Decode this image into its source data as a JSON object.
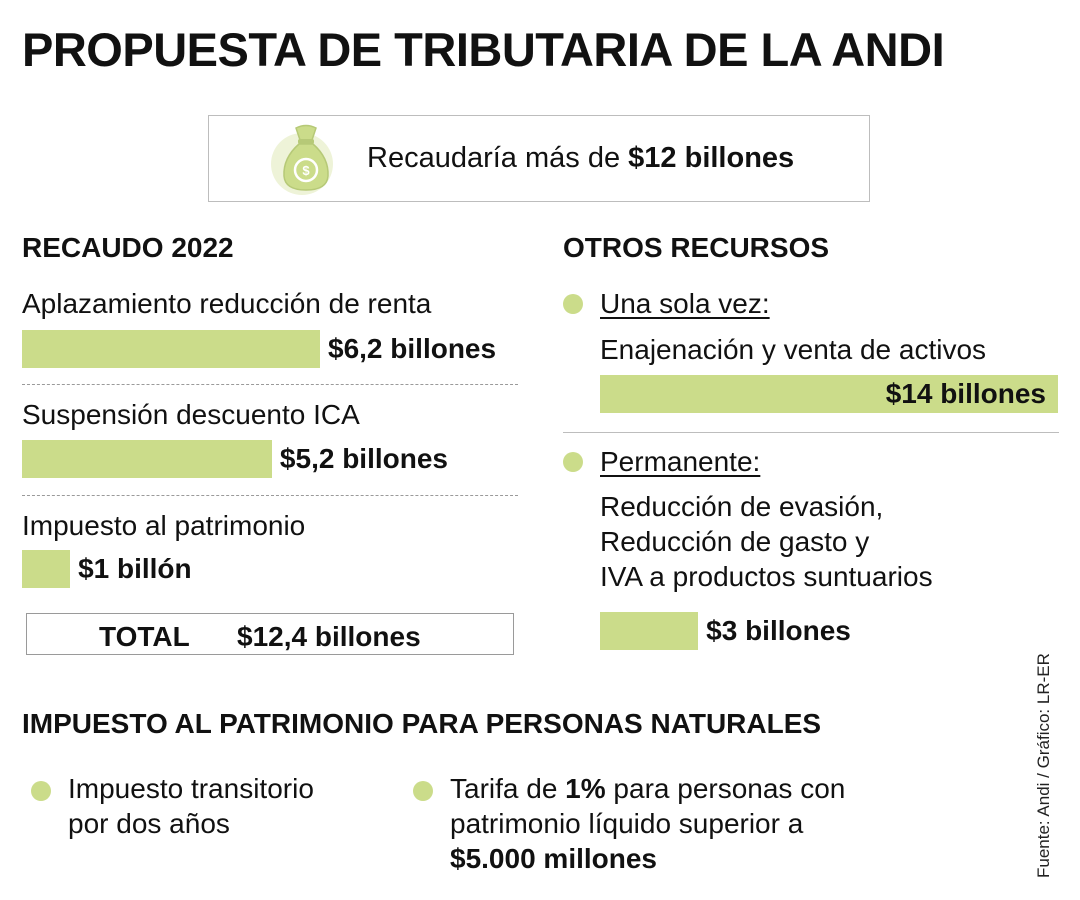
{
  "title": "PROPUESTA DE TRIBUTARIA DE LA ANDI",
  "summary": {
    "icon": "money-bag-icon",
    "text_prefix": "Recaudaría más de ",
    "text_bold": "$12 billones"
  },
  "colors": {
    "accent": "#cbdc8a",
    "text": "#111111",
    "border": "#bdbdbd"
  },
  "chart_data": {
    "type": "bar",
    "title": "RECAUDO 2022",
    "categories": [
      "Aplazamiento reducción de renta",
      "Suspensión descuento ICA",
      "Impuesto al patrimonio"
    ],
    "values": [
      6.2,
      5.2,
      1
    ],
    "value_labels": [
      "$6,2 billones",
      "$5,2 billones",
      "$1 billón"
    ],
    "total": {
      "label": "TOTAL",
      "value": 12.4,
      "value_label": "$12,4 billones"
    }
  },
  "otros": {
    "heading": "OTROS RECURSOS",
    "once": {
      "label": "Una sola vez:",
      "desc": "Enajenación y venta de activos",
      "value": 14,
      "value_label": "$14 billones"
    },
    "permanent": {
      "label": "Permanente:",
      "desc_lines": [
        "Reducción de evasión,",
        "Reducción de gasto y",
        "IVA a productos suntuarios"
      ],
      "value": 3,
      "value_label": "$3 billones"
    }
  },
  "patrimonio": {
    "heading": "IMPUESTO AL PATRIMONIO PARA PERSONAS NATURALES",
    "bullet1_lines": [
      "Impuesto transitorio",
      "por dos años"
    ],
    "bullet2": {
      "line1_prefix": "Tarifa de ",
      "line1_bold": "1%",
      "line1_suffix": " para personas con",
      "line2": "patrimonio líquido superior a",
      "line3_bold": "$5.000 millones"
    }
  },
  "credit": "Fuente: Andi / Gráfico: LR-ER"
}
